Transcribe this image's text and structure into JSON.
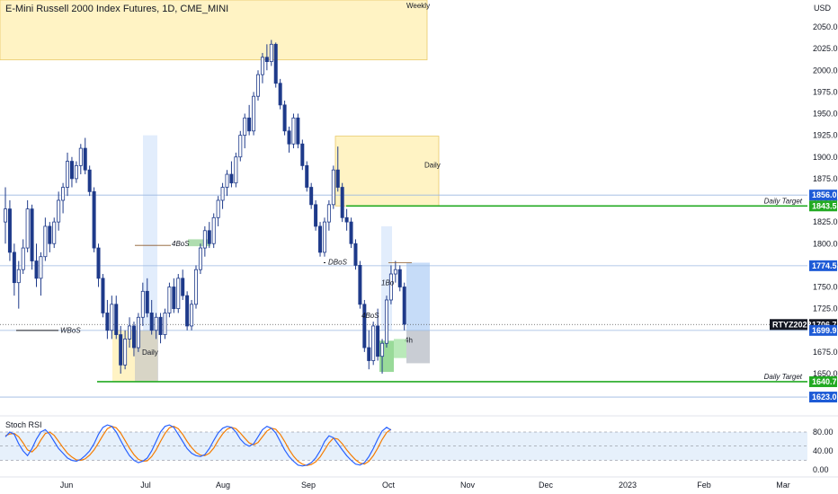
{
  "title": "E-Mini Russell 2000 Index Futures, 1D, CME_MINI",
  "chart_data": {
    "type": "candlestick",
    "currency": "USD",
    "ylim": [
      1630,
      2070
    ],
    "y_ticks": [
      1650,
      1675,
      1700,
      1725,
      1750,
      1775,
      1800,
      1825,
      1850,
      1875,
      1900,
      1925,
      1950,
      1975,
      2000,
      2025,
      2050
    ],
    "x_ticks": [
      "Jun",
      "Jul",
      "Aug",
      "Sep",
      "Oct",
      "Nov",
      "Dec",
      "2023",
      "Feb",
      "Mar"
    ],
    "colors": {
      "up": "#ffffff",
      "down": "#1e3a8a",
      "green_line": "#22aa22",
      "target_tag": "#1e5bd6",
      "last_tag": "#131722",
      "zone_fill": "#fff3c4",
      "zone_stroke": "#e8c96a",
      "band": "#dbe8fb"
    },
    "candles": [
      {
        "o": 1825,
        "h": 1865,
        "l": 1800,
        "c": 1840
      },
      {
        "o": 1840,
        "h": 1850,
        "l": 1780,
        "c": 1790
      },
      {
        "o": 1790,
        "h": 1800,
        "l": 1740,
        "c": 1755
      },
      {
        "o": 1755,
        "h": 1780,
        "l": 1725,
        "c": 1770
      },
      {
        "o": 1770,
        "h": 1805,
        "l": 1765,
        "c": 1795
      },
      {
        "o": 1795,
        "h": 1850,
        "l": 1790,
        "c": 1840
      },
      {
        "o": 1840,
        "h": 1845,
        "l": 1770,
        "c": 1780
      },
      {
        "o": 1780,
        "h": 1800,
        "l": 1750,
        "c": 1760
      },
      {
        "o": 1760,
        "h": 1790,
        "l": 1740,
        "c": 1785
      },
      {
        "o": 1785,
        "h": 1830,
        "l": 1780,
        "c": 1820
      },
      {
        "o": 1820,
        "h": 1825,
        "l": 1790,
        "c": 1800
      },
      {
        "o": 1800,
        "h": 1830,
        "l": 1795,
        "c": 1825
      },
      {
        "o": 1825,
        "h": 1860,
        "l": 1815,
        "c": 1850
      },
      {
        "o": 1850,
        "h": 1870,
        "l": 1835,
        "c": 1865
      },
      {
        "o": 1865,
        "h": 1905,
        "l": 1855,
        "c": 1895
      },
      {
        "o": 1895,
        "h": 1900,
        "l": 1865,
        "c": 1875
      },
      {
        "o": 1875,
        "h": 1895,
        "l": 1870,
        "c": 1890
      },
      {
        "o": 1890,
        "h": 1915,
        "l": 1880,
        "c": 1910
      },
      {
        "o": 1910,
        "h": 1922,
        "l": 1880,
        "c": 1885
      },
      {
        "o": 1885,
        "h": 1890,
        "l": 1855,
        "c": 1860
      },
      {
        "o": 1860,
        "h": 1865,
        "l": 1790,
        "c": 1795
      },
      {
        "o": 1795,
        "h": 1800,
        "l": 1750,
        "c": 1760
      },
      {
        "o": 1760,
        "h": 1765,
        "l": 1715,
        "c": 1720
      },
      {
        "o": 1720,
        "h": 1735,
        "l": 1690,
        "c": 1700
      },
      {
        "o": 1700,
        "h": 1740,
        "l": 1690,
        "c": 1730
      },
      {
        "o": 1730,
        "h": 1740,
        "l": 1690,
        "c": 1695
      },
      {
        "o": 1695,
        "h": 1705,
        "l": 1650,
        "c": 1660
      },
      {
        "o": 1660,
        "h": 1700,
        "l": 1655,
        "c": 1690
      },
      {
        "o": 1690,
        "h": 1715,
        "l": 1680,
        "c": 1705
      },
      {
        "o": 1705,
        "h": 1710,
        "l": 1670,
        "c": 1680
      },
      {
        "o": 1680,
        "h": 1720,
        "l": 1675,
        "c": 1715
      },
      {
        "o": 1715,
        "h": 1755,
        "l": 1705,
        "c": 1745
      },
      {
        "o": 1745,
        "h": 1760,
        "l": 1715,
        "c": 1720
      },
      {
        "o": 1720,
        "h": 1735,
        "l": 1695,
        "c": 1700
      },
      {
        "o": 1700,
        "h": 1720,
        "l": 1690,
        "c": 1715
      },
      {
        "o": 1715,
        "h": 1720,
        "l": 1685,
        "c": 1695
      },
      {
        "o": 1695,
        "h": 1725,
        "l": 1690,
        "c": 1720
      },
      {
        "o": 1720,
        "h": 1755,
        "l": 1715,
        "c": 1750
      },
      {
        "o": 1750,
        "h": 1760,
        "l": 1720,
        "c": 1725
      },
      {
        "o": 1725,
        "h": 1765,
        "l": 1720,
        "c": 1760
      },
      {
        "o": 1760,
        "h": 1770,
        "l": 1735,
        "c": 1740
      },
      {
        "o": 1740,
        "h": 1745,
        "l": 1700,
        "c": 1705
      },
      {
        "o": 1705,
        "h": 1735,
        "l": 1700,
        "c": 1730
      },
      {
        "o": 1730,
        "h": 1775,
        "l": 1725,
        "c": 1770
      },
      {
        "o": 1770,
        "h": 1800,
        "l": 1765,
        "c": 1795
      },
      {
        "o": 1795,
        "h": 1820,
        "l": 1785,
        "c": 1815
      },
      {
        "o": 1815,
        "h": 1825,
        "l": 1795,
        "c": 1800
      },
      {
        "o": 1800,
        "h": 1835,
        "l": 1795,
        "c": 1830
      },
      {
        "o": 1830,
        "h": 1855,
        "l": 1820,
        "c": 1850
      },
      {
        "o": 1850,
        "h": 1870,
        "l": 1840,
        "c": 1865
      },
      {
        "o": 1865,
        "h": 1885,
        "l": 1855,
        "c": 1880
      },
      {
        "o": 1880,
        "h": 1895,
        "l": 1865,
        "c": 1870
      },
      {
        "o": 1870,
        "h": 1905,
        "l": 1865,
        "c": 1900
      },
      {
        "o": 1900,
        "h": 1930,
        "l": 1895,
        "c": 1925
      },
      {
        "o": 1925,
        "h": 1950,
        "l": 1910,
        "c": 1945
      },
      {
        "o": 1945,
        "h": 1960,
        "l": 1925,
        "c": 1930
      },
      {
        "o": 1930,
        "h": 1975,
        "l": 1925,
        "c": 1970
      },
      {
        "o": 1970,
        "h": 2000,
        "l": 1965,
        "c": 1995
      },
      {
        "o": 1995,
        "h": 2020,
        "l": 1985,
        "c": 2015
      },
      {
        "o": 2015,
        "h": 2030,
        "l": 2000,
        "c": 2010
      },
      {
        "o": 2010,
        "h": 2035,
        "l": 2005,
        "c": 2030
      },
      {
        "o": 2030,
        "h": 2032,
        "l": 1980,
        "c": 1985
      },
      {
        "o": 1985,
        "h": 1990,
        "l": 1955,
        "c": 1960
      },
      {
        "o": 1960,
        "h": 1965,
        "l": 1925,
        "c": 1930
      },
      {
        "o": 1930,
        "h": 1935,
        "l": 1905,
        "c": 1915
      },
      {
        "o": 1915,
        "h": 1950,
        "l": 1910,
        "c": 1945
      },
      {
        "o": 1945,
        "h": 1950,
        "l": 1910,
        "c": 1915
      },
      {
        "o": 1915,
        "h": 1920,
        "l": 1885,
        "c": 1890
      },
      {
        "o": 1890,
        "h": 1895,
        "l": 1860,
        "c": 1865
      },
      {
        "o": 1865,
        "h": 1870,
        "l": 1840,
        "c": 1845
      },
      {
        "o": 1845,
        "h": 1850,
        "l": 1815,
        "c": 1820
      },
      {
        "o": 1820,
        "h": 1825,
        "l": 1785,
        "c": 1790
      },
      {
        "o": 1790,
        "h": 1830,
        "l": 1785,
        "c": 1825
      },
      {
        "o": 1825,
        "h": 1850,
        "l": 1815,
        "c": 1845
      },
      {
        "o": 1845,
        "h": 1890,
        "l": 1840,
        "c": 1885
      },
      {
        "o": 1885,
        "h": 1912,
        "l": 1860,
        "c": 1865
      },
      {
        "o": 1865,
        "h": 1870,
        "l": 1825,
        "c": 1830
      },
      {
        "o": 1830,
        "h": 1840,
        "l": 1815,
        "c": 1825
      },
      {
        "o": 1825,
        "h": 1830,
        "l": 1795,
        "c": 1800
      },
      {
        "o": 1800,
        "h": 1805,
        "l": 1770,
        "c": 1775
      },
      {
        "o": 1775,
        "h": 1780,
        "l": 1725,
        "c": 1730
      },
      {
        "o": 1730,
        "h": 1735,
        "l": 1675,
        "c": 1680
      },
      {
        "o": 1680,
        "h": 1700,
        "l": 1655,
        "c": 1665
      },
      {
        "o": 1665,
        "h": 1710,
        "l": 1660,
        "c": 1705
      },
      {
        "o": 1705,
        "h": 1725,
        "l": 1665,
        "c": 1670
      },
      {
        "o": 1670,
        "h": 1690,
        "l": 1650,
        "c": 1685
      },
      {
        "o": 1685,
        "h": 1740,
        "l": 1680,
        "c": 1735
      },
      {
        "o": 1735,
        "h": 1775,
        "l": 1730,
        "c": 1765
      },
      {
        "o": 1765,
        "h": 1780,
        "l": 1755,
        "c": 1770
      },
      {
        "o": 1770,
        "h": 1775,
        "l": 1745,
        "c": 1750
      },
      {
        "o": 1750,
        "h": 1755,
        "l": 1700,
        "c": 1707
      }
    ],
    "levels": [
      {
        "value": 1856.0,
        "label": "1856.0",
        "kind": "target"
      },
      {
        "value": 1843.5,
        "label": "1843.5",
        "kind": "green",
        "note": "Daily Target"
      },
      {
        "value": 1774.5,
        "label": "1774.5",
        "kind": "target"
      },
      {
        "value": 1706.7,
        "label": "1706.7",
        "kind": "last",
        "symbol": "RTYZ2022"
      },
      {
        "value": 1699.9,
        "label": "1699.9",
        "kind": "target"
      },
      {
        "value": 1640.7,
        "label": "1640.7",
        "kind": "green",
        "note": "Daily Target"
      },
      {
        "value": 1623.0,
        "label": "1623.0",
        "kind": "target"
      }
    ],
    "annotations": {
      "weekly": "Weekly",
      "daily": "Daily",
      "four_h": "4h",
      "wbos": "WBoS",
      "dbos": "DBoS",
      "four_bos": "4BoS",
      "one_b": "1Bo",
      "four_bos_2": "4BoS"
    },
    "stoch": {
      "title": "Stoch RSI",
      "ylim": [
        0,
        100
      ],
      "y_ticks": [
        "80.00",
        "40.00",
        "0.00"
      ],
      "k": [
        70,
        80,
        75,
        55,
        40,
        30,
        45,
        65,
        80,
        85,
        75,
        60,
        45,
        35,
        25,
        20,
        18,
        22,
        30,
        40,
        55,
        75,
        90,
        95,
        92,
        80,
        62,
        45,
        30,
        20,
        15,
        18,
        25,
        40,
        60,
        80,
        92,
        95,
        90,
        75,
        60,
        45,
        35,
        30,
        28,
        32,
        45,
        62,
        78,
        88,
        92,
        90,
        80,
        65,
        55,
        50,
        55,
        70,
        85,
        92,
        88,
        78,
        60,
        42,
        28,
        18,
        10,
        8,
        10,
        15,
        25,
        40,
        60,
        72,
        68,
        55,
        42,
        30,
        20,
        12,
        10,
        15,
        28,
        45,
        65,
        82,
        90,
        84
      ],
      "d": [
        72,
        76,
        77,
        70,
        57,
        42,
        38,
        47,
        63,
        77,
        80,
        73,
        60,
        47,
        35,
        27,
        21,
        20,
        23,
        31,
        42,
        57,
        73,
        87,
        92,
        89,
        78,
        62,
        46,
        32,
        22,
        18,
        19,
        28,
        42,
        60,
        77,
        89,
        92,
        87,
        75,
        60,
        47,
        37,
        31,
        30,
        35,
        46,
        62,
        76,
        86,
        90,
        87,
        78,
        67,
        57,
        53,
        58,
        70,
        82,
        88,
        86,
        75,
        60,
        43,
        29,
        18,
        12,
        9,
        11,
        17,
        27,
        42,
        57,
        67,
        65,
        55,
        42,
        31,
        21,
        14,
        12,
        18,
        30,
        46,
        64,
        79,
        86
      ],
      "band": [
        20,
        80
      ]
    }
  }
}
